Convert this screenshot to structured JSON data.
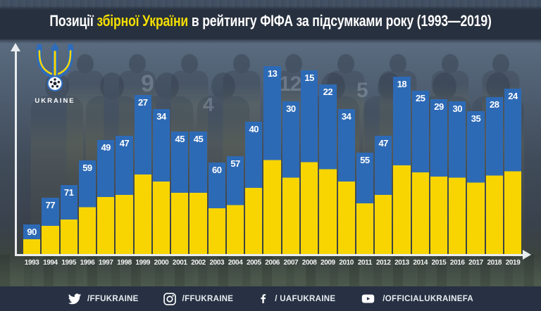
{
  "header": {
    "title": {
      "prefix": "Позиції ",
      "highlight": "збірної України",
      "suffix": " в рейтингу ФІФА за підсумками року (1993—2019)"
    }
  },
  "logo": {
    "country": "UKRAINE"
  },
  "chart_data": {
    "type": "bar",
    "title": "Позиції збірної України в рейтингу ФІФА за підсумками року (1993—2019)",
    "categories": [
      "1993",
      "1994",
      "1995",
      "1996",
      "1997",
      "1998",
      "1999",
      "2000",
      "2001",
      "2002",
      "2003",
      "2004",
      "2005",
      "2006",
      "2007",
      "2008",
      "2009",
      "2010",
      "2011",
      "2012",
      "2013",
      "2014",
      "2015",
      "2016",
      "2017",
      "2018",
      "2019"
    ],
    "values": [
      90,
      77,
      71,
      59,
      49,
      47,
      27,
      34,
      45,
      45,
      60,
      57,
      40,
      13,
      30,
      15,
      22,
      34,
      55,
      47,
      18,
      25,
      29,
      30,
      35,
      28,
      24
    ],
    "xlabel": "",
    "ylabel": "",
    "grid": false,
    "legend": false,
    "value_labels_shown": true,
    "value_axis_inverted": true,
    "bar_top_color": "#2d6ab6",
    "bar_bottom_color": "#f8d501",
    "value_label_color": "#ffffff",
    "title_highlight_color": "#f4de00"
  },
  "background_photo": {
    "jersey_numbers": [
      "9",
      "12",
      "4",
      "5"
    ]
  },
  "footer": {
    "social": [
      {
        "icon": "twitter-icon",
        "handle": "/FFUKRAINE"
      },
      {
        "icon": "instagram-icon",
        "handle": "/FFUKRAINE"
      },
      {
        "icon": "facebook-icon",
        "handle": "/ UAFUKRAINE"
      },
      {
        "icon": "youtube-icon",
        "handle": "/OFFICIALUKRAINEFA"
      }
    ]
  }
}
